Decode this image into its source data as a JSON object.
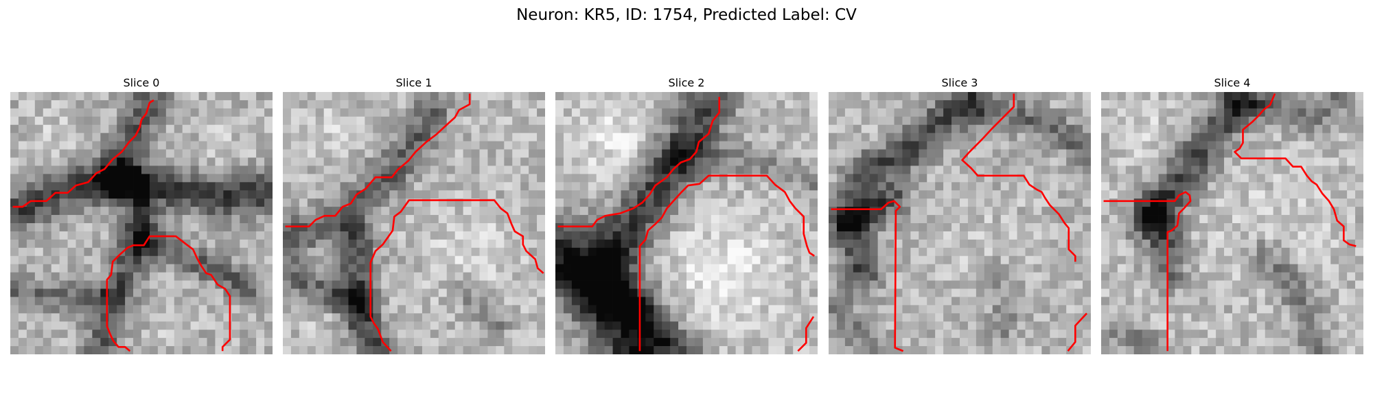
{
  "figure": {
    "title": "Neuron: KR5, ID: 1754, Predicted Label: CV"
  },
  "slices": [
    {
      "title": "Slice 0"
    },
    {
      "title": "Slice 1"
    },
    {
      "title": "Slice 2"
    },
    {
      "title": "Slice 3"
    },
    {
      "title": "Slice 4"
    }
  ],
  "colors": {
    "contour": "#ff0000",
    "background": "#ffffff"
  }
}
